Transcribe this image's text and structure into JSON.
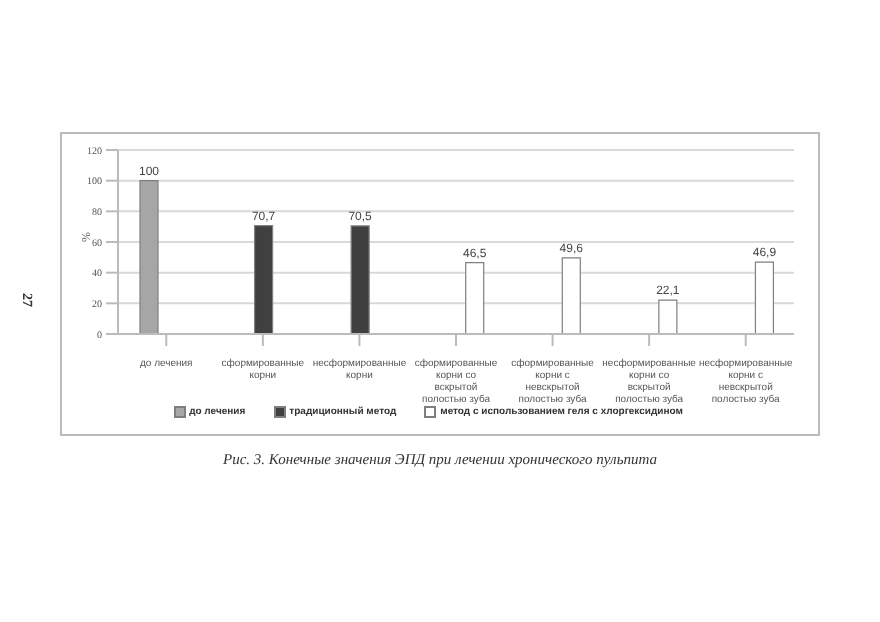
{
  "chart_data": {
    "type": "bar",
    "title": "Рис. 3. Конечные значения ЭПД при лечении хронического пульпита",
    "ylabel": "%",
    "annotations": [
      "27"
    ],
    "categories": [
      "до лечения",
      "сформированные корни",
      "несформированные корни",
      "сформированные корни со вскрытой полостью зуба",
      "сформированные корни с невскрытой полостью зуба",
      "несформированные корни со вскрытой полостью зуба",
      "несформированные корни с невскрытой полостью зуба"
    ],
    "series": [
      {
        "name": "до лечения",
        "color": "#a6a6a6",
        "values": [
          100,
          null,
          null,
          null,
          null,
          null,
          null
        ],
        "value_labels": [
          "100",
          null,
          null,
          null,
          null,
          null,
          null
        ]
      },
      {
        "name": "традиционный метод",
        "color": "#404040",
        "values": [
          null,
          70.7,
          70.5,
          null,
          null,
          null,
          null
        ],
        "value_labels": [
          null,
          "70,7",
          "70,5",
          null,
          null,
          null,
          null
        ]
      },
      {
        "name": "метод с использованием геля с хлоргексидином",
        "color": "#ffffff",
        "values": [
          null,
          null,
          null,
          46.5,
          49.6,
          22.1,
          46.9
        ],
        "value_labels": [
          null,
          null,
          null,
          "46,5",
          "49,6",
          "22,1",
          "46,9"
        ]
      }
    ],
    "ylim": [
      0,
      120
    ],
    "yticks": [
      0,
      20,
      40,
      60,
      80,
      100,
      120
    ],
    "grid": "y",
    "legend": "bottom"
  }
}
